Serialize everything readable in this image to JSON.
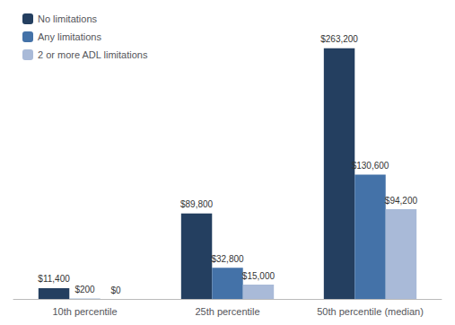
{
  "chart_data": {
    "type": "bar",
    "categories": [
      "10th percentile",
      "25th percentile",
      "50th percentile (median)"
    ],
    "series": [
      {
        "name": "No limitations",
        "color": "#243F60",
        "values": [
          11400,
          89800,
          263200
        ],
        "value_labels": [
          "$11,400",
          "$89,800",
          "$263,200"
        ]
      },
      {
        "name": "Any limitations",
        "color": "#4472A8",
        "values": [
          200,
          32800,
          130600
        ],
        "value_labels": [
          "$200",
          "$32,800",
          "$130,600"
        ]
      },
      {
        "name": "2 or more ADL limitations",
        "color": "#A9BAD8",
        "values": [
          0,
          15000,
          94200
        ],
        "value_labels": [
          "$0",
          "$15,000",
          "$94,200"
        ]
      }
    ],
    "ylim": [
      0,
      295000
    ],
    "grid": false,
    "legend": "upper left",
    "data_labels": true,
    "tick_labels": "x"
  }
}
